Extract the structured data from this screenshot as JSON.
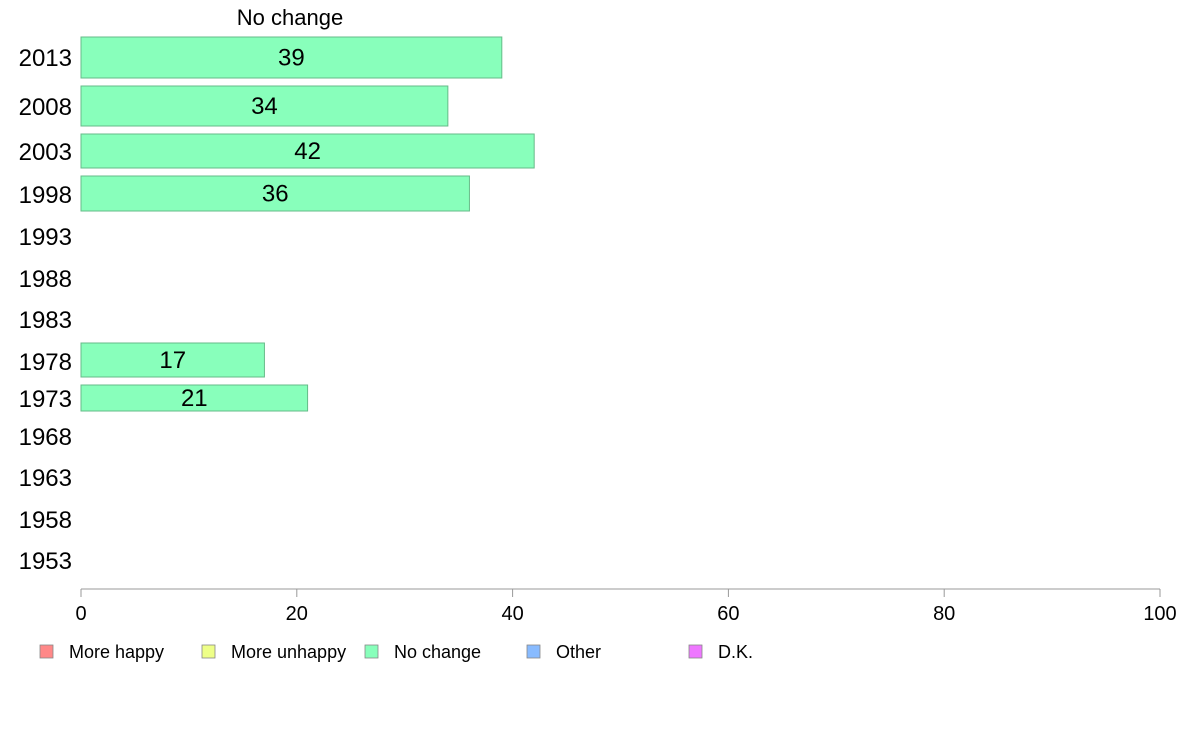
{
  "chart_data": {
    "type": "bar",
    "orientation": "horizontal",
    "title": "No change",
    "categories": [
      "2013",
      "2008",
      "2003",
      "1998",
      "1993",
      "1988",
      "1983",
      "1978",
      "1973",
      "1968",
      "1963",
      "1958",
      "1953"
    ],
    "series": [
      {
        "name": "No change",
        "values": [
          39,
          34,
          42,
          36,
          null,
          null,
          null,
          17,
          21,
          null,
          null,
          null,
          null
        ]
      }
    ],
    "xlim": [
      0,
      100
    ],
    "xticks": [
      0,
      20,
      40,
      60,
      80,
      100
    ],
    "xticklabels": [
      "0",
      "20",
      "40",
      "60",
      "80",
      "100"
    ],
    "grid": false,
    "legend": {
      "position": "bottom",
      "entries": [
        {
          "label": "More happy",
          "color": "#ff8888"
        },
        {
          "label": "More unhappy",
          "color": "#eeff88"
        },
        {
          "label": "No change",
          "color": "#88ffbb"
        },
        {
          "label": "Other",
          "color": "#88bbff"
        },
        {
          "label": "D.K.",
          "color": "#ee77ff"
        }
      ]
    },
    "bar_color": "#88ffbb",
    "bar_stroke": "#66bb88",
    "axis_color": "#999999"
  }
}
